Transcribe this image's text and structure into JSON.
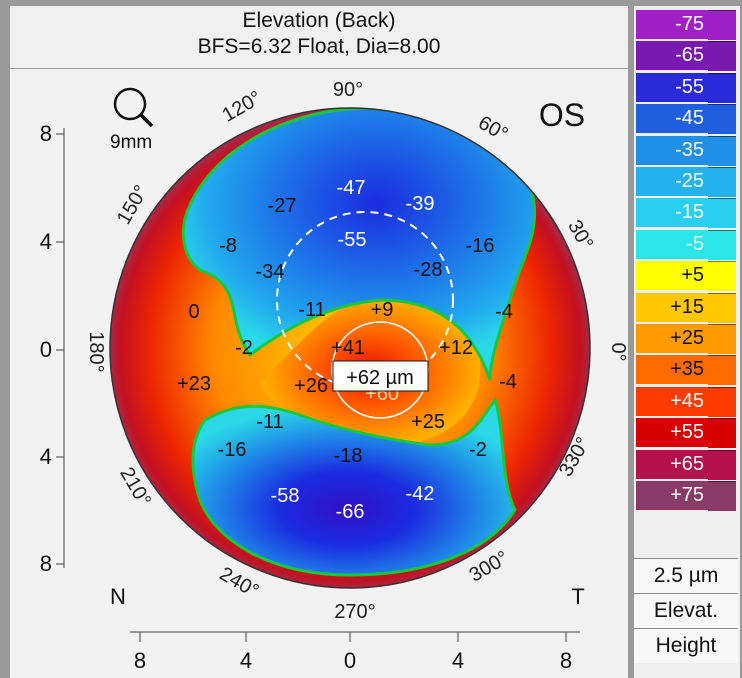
{
  "title": {
    "line1": "Elevation (Back)",
    "line2": "BFS=6.32 Float, Dia=8.00"
  },
  "eye": "OS",
  "zoom_label": "9mm",
  "center_readout": "+62 µm",
  "center_hidden_value": "+60",
  "side_labels": {
    "nasal": "N",
    "temporal": "T"
  },
  "angle_labels": [
    "90°",
    "60°",
    "30°",
    "0°",
    "330°",
    "300°",
    "270°",
    "240°",
    "210°",
    "180°",
    "150°",
    "120°"
  ],
  "y_axis_ticks": [
    "8",
    "4",
    "0",
    "4",
    "8"
  ],
  "x_axis_ticks": [
    "8",
    "4",
    "0",
    "4",
    "8"
  ],
  "map_values": [
    "-47",
    "-39",
    "-27",
    "-55",
    "-8",
    "-16",
    "-34",
    "-28",
    "0",
    "-11",
    "+9",
    "-4",
    "-2",
    "+41",
    "+12",
    "+23",
    "+26",
    "-4",
    "-11",
    "+25",
    "-16",
    "-18",
    "-2",
    "-58",
    "-42",
    "-66"
  ],
  "legend": {
    "levels": [
      "-75",
      "-65",
      "-55",
      "-45",
      "-35",
      "-25",
      "-15",
      "-5",
      "+5",
      "+15",
      "+25",
      "+35",
      "+45",
      "+55",
      "+65",
      "+75"
    ],
    "colors": [
      "#a020c8",
      "#7a19b0",
      "#2a2ad8",
      "#1f5fe0",
      "#1f8fe8",
      "#22b2f0",
      "#28cfee",
      "#2be6e6",
      "#ffff00",
      "#ffc800",
      "#ff9a00",
      "#ff6a00",
      "#ff3a00",
      "#d80000",
      "#b4104a",
      "#8a3a66"
    ],
    "step": "2.5 µm",
    "mode1": "Elevat.",
    "mode2": "Height"
  },
  "colors": {
    "boundary": "#19c83a",
    "background": "#f2f2f2"
  }
}
